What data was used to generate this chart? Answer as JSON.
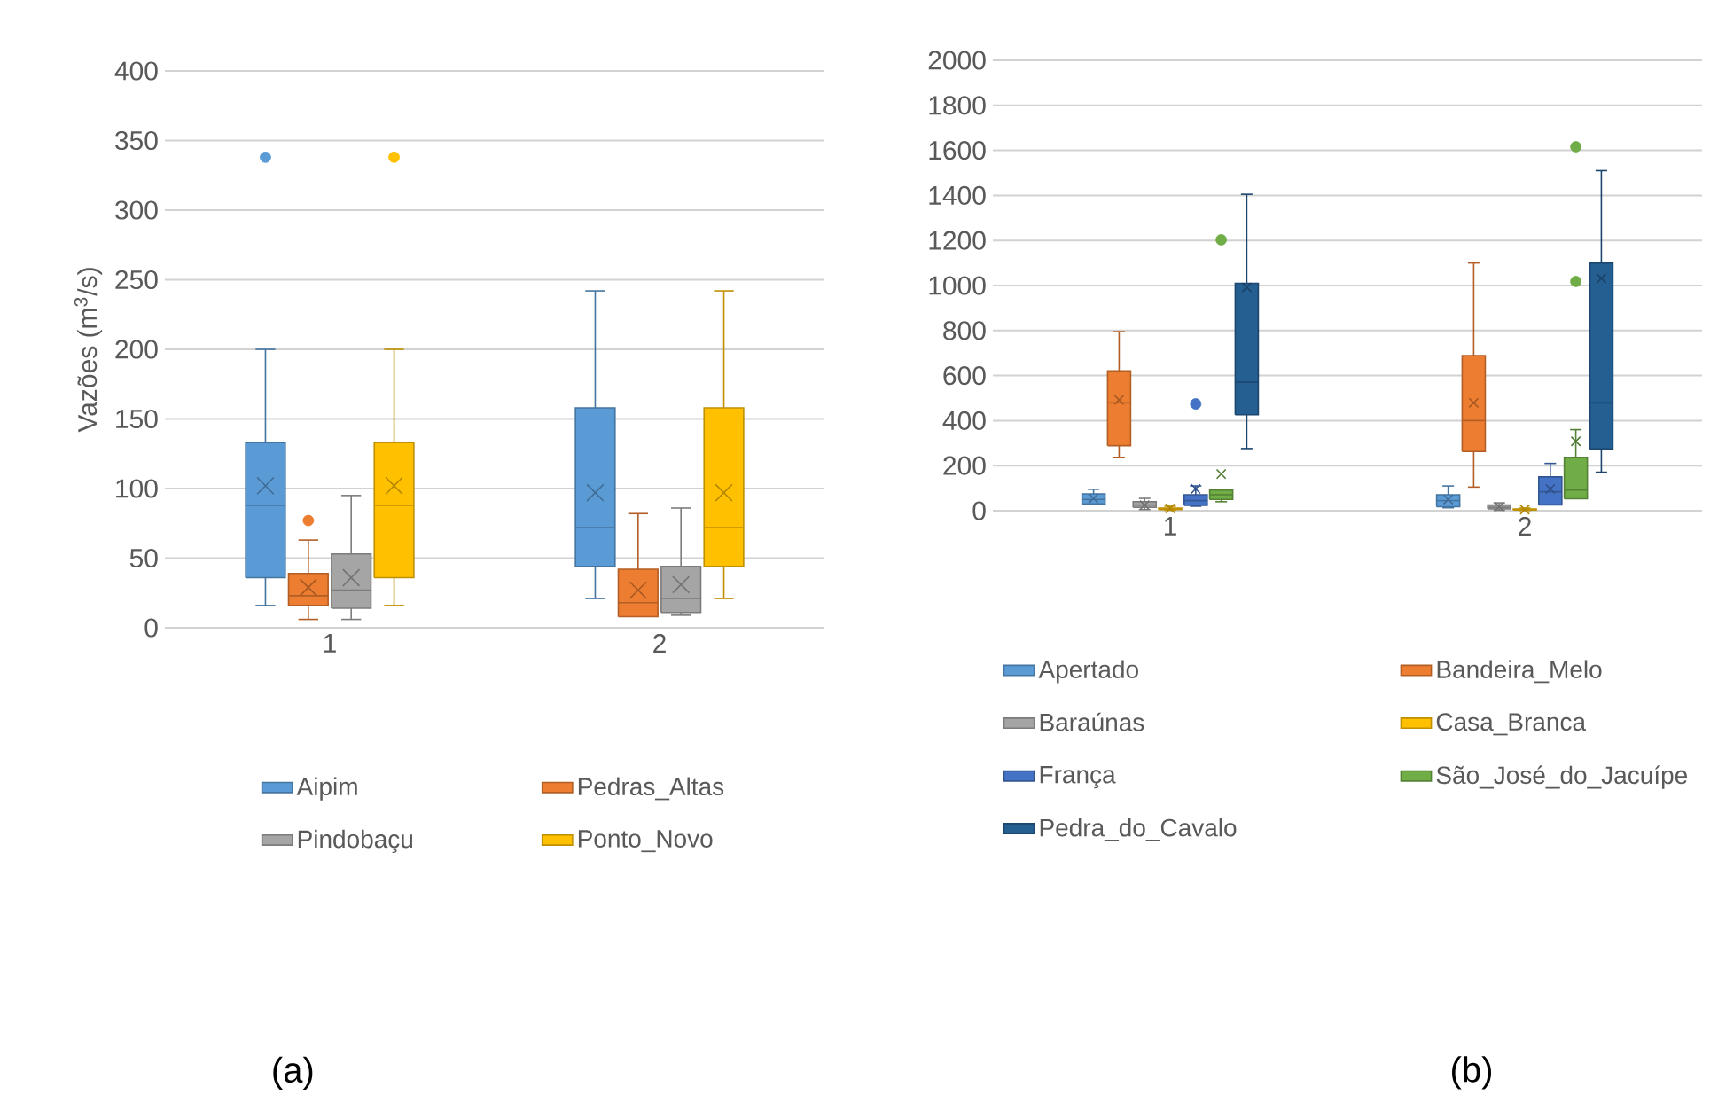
{
  "chart_data": [
    {
      "type": "box",
      "categories": [
        "1",
        "2"
      ],
      "ylabel": "Vazões (m$^{3}$/s)",
      "ylim": [
        0,
        400
      ],
      "yticks": [
        0,
        50,
        100,
        150,
        200,
        250,
        300,
        350,
        400
      ],
      "grid": "y",
      "legend": "bottom",
      "annotations": [
        "(a)"
      ],
      "series": [
        {
          "name": "Aipim",
          "color": "#5b9bd5",
          "boxes": [
            {
              "low": 16,
              "q1": 36,
              "median": 88,
              "q3": 133,
              "high": 200,
              "mean": 102,
              "outliers": [
                338
              ]
            },
            {
              "low": 21,
              "q1": 44,
              "median": 72,
              "q3": 158,
              "high": 242,
              "mean": 97
            }
          ]
        },
        {
          "name": "Pedras_Altas",
          "color": "#ed7d31",
          "boxes": [
            {
              "low": 6,
              "q1": 16,
              "median": 23,
              "q3": 39,
              "high": 63,
              "mean": 29,
              "outliers": [
                77
              ]
            },
            {
              "low": 8,
              "q1": 8,
              "median": 18,
              "q3": 42,
              "high": 82,
              "mean": 27
            }
          ]
        },
        {
          "name": "Pindobaçu",
          "color": "#a5a5a5",
          "boxes": [
            {
              "low": 6,
              "q1": 14,
              "median": 27,
              "q3": 53,
              "high": 95,
              "mean": 36
            },
            {
              "low": 9,
              "q1": 11,
              "median": 21,
              "q3": 44,
              "high": 86,
              "mean": 31
            }
          ]
        },
        {
          "name": "Ponto_Novo",
          "color": "#ffc000",
          "boxes": [
            {
              "low": 16,
              "q1": 36,
              "median": 88,
              "q3": 133,
              "high": 200,
              "mean": 102,
              "outliers": [
                338
              ]
            },
            {
              "low": 21,
              "q1": 44,
              "median": 72,
              "q3": 158,
              "high": 242,
              "mean": 97
            }
          ]
        }
      ]
    },
    {
      "type": "box",
      "categories": [
        "1",
        "2"
      ],
      "ylim": [
        0,
        2000
      ],
      "yticks": [
        0,
        200,
        400,
        600,
        800,
        1000,
        1200,
        1400,
        1600,
        1800,
        2000
      ],
      "grid": "y",
      "legend": "bottom",
      "annotations": [
        "(b)"
      ],
      "series": [
        {
          "name": "Apertado",
          "color": "#5b9bd5",
          "boxes": [
            {
              "low": 30,
              "q1": 30,
              "median": 50,
              "q3": 75,
              "high": 95,
              "mean": 55
            },
            {
              "low": 13,
              "q1": 18,
              "median": 45,
              "q3": 71,
              "high": 110,
              "mean": 50
            }
          ]
        },
        {
          "name": "Bandeira_Melo",
          "color": "#ed7d31",
          "boxes": [
            {
              "low": 237,
              "q1": 289,
              "median": 479,
              "q3": 621,
              "high": 795,
              "mean": 492
            },
            {
              "low": 105,
              "q1": 263,
              "median": 400,
              "q3": 689,
              "high": 1100,
              "mean": 479
            }
          ]
        },
        {
          "name": "Baraúnas",
          "color": "#a5a5a5",
          "boxes": [
            {
              "low": 5,
              "q1": 15,
              "median": 25,
              "q3": 40,
              "high": 55,
              "mean": 25
            },
            {
              "low": 2,
              "q1": 8,
              "median": 15,
              "q3": 25,
              "high": 35,
              "mean": 18
            }
          ]
        },
        {
          "name": "Casa_Branca",
          "color": "#ffc000",
          "boxes": [
            {
              "low": 2,
              "q1": 5,
              "median": 8,
              "q3": 12,
              "high": 20,
              "mean": 10
            },
            {
              "low": 1,
              "q1": 3,
              "median": 5,
              "q3": 8,
              "high": 12,
              "mean": 5
            }
          ]
        },
        {
          "name": "França",
          "color": "#4472c4",
          "boxes": [
            {
              "low": 20,
              "q1": 24,
              "median": 45,
              "q3": 71,
              "high": 110,
              "mean": 97,
              "outliers": [
                474
              ]
            },
            {
              "low": 26,
              "q1": 26,
              "median": 84,
              "q3": 150,
              "high": 210,
              "mean": 97
            }
          ]
        },
        {
          "name": "São_José_do_Jacuípe",
          "color": "#70ad47",
          "boxes": [
            {
              "low": 40,
              "q1": 50,
              "median": 71,
              "q3": 92,
              "high": 95,
              "mean": 163,
              "outliers": [
                1203
              ]
            },
            {
              "low": 53,
              "q1": 53,
              "median": 92,
              "q3": 237,
              "high": 360,
              "mean": 308,
              "outliers": [
                1018,
                1616
              ]
            }
          ]
        },
        {
          "name": "Pedra_do_Cavalo",
          "color": "#255e91",
          "boxes": [
            {
              "low": 276,
              "q1": 426,
              "median": 571,
              "q3": 1010,
              "high": 1405,
              "mean": 992
            },
            {
              "low": 171,
              "q1": 274,
              "median": 479,
              "q3": 1100,
              "high": 1510,
              "mean": 1032
            }
          ]
        }
      ]
    }
  ]
}
